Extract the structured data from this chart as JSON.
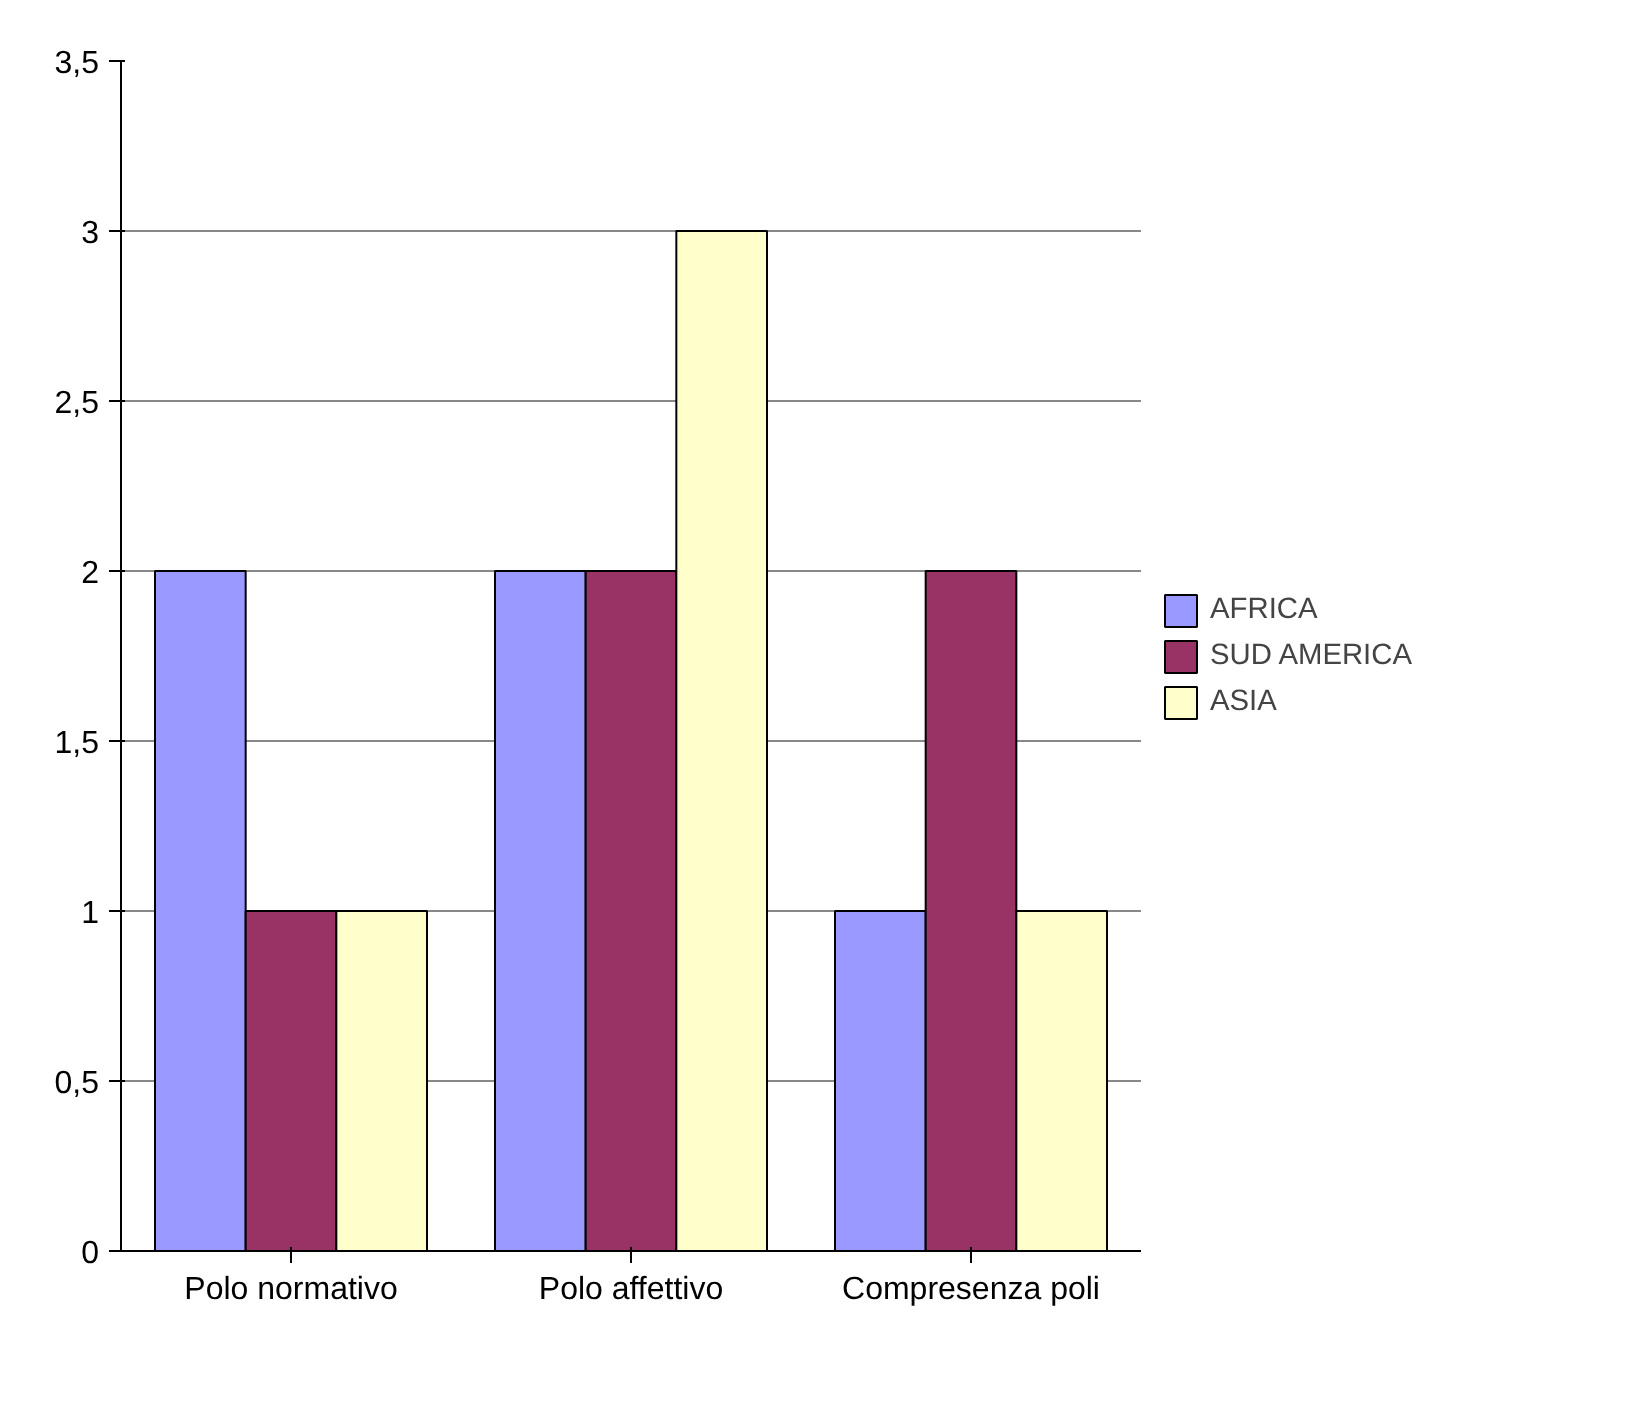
{
  "chart_data": {
    "type": "bar",
    "categories": [
      "Polo normativo",
      "Polo affettivo",
      "Compresenza poli"
    ],
    "series": [
      {
        "name": "AFRICA",
        "color": "#9999ff",
        "values": [
          2,
          2,
          1
        ]
      },
      {
        "name": "SUD AMERICA",
        "color": "#993366",
        "values": [
          1,
          2,
          2
        ]
      },
      {
        "name": "ASIA",
        "color": "#ffffcc",
        "values": [
          1,
          3,
          1
        ]
      }
    ],
    "ylim": [
      0,
      3.5
    ],
    "yticks": [
      {
        "value": 0,
        "label": "0"
      },
      {
        "value": 0.5,
        "label": "0,5"
      },
      {
        "value": 1,
        "label": "1"
      },
      {
        "value": 1.5,
        "label": "1,5"
      },
      {
        "value": 2,
        "label": "2"
      },
      {
        "value": 2.5,
        "label": "2,5"
      },
      {
        "value": 3,
        "label": "3"
      },
      {
        "value": 3.5,
        "label": "3,5"
      }
    ],
    "grid": "y",
    "legend": "right"
  }
}
